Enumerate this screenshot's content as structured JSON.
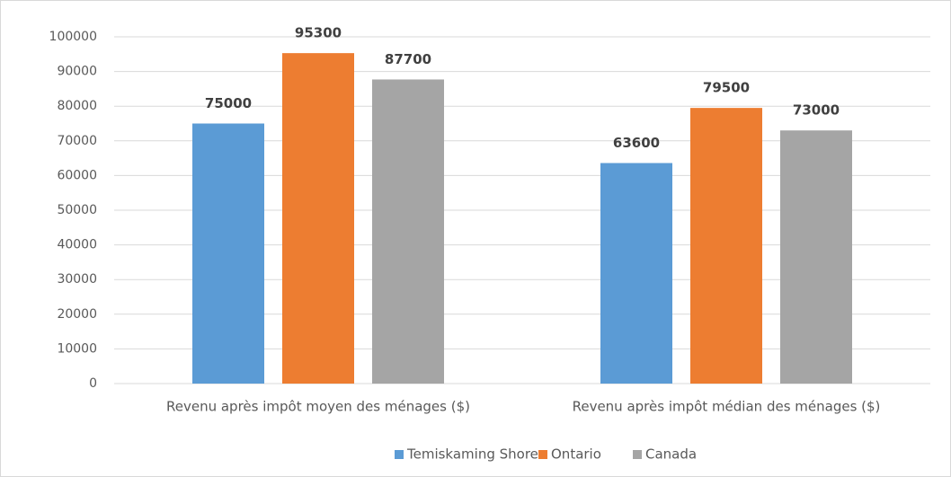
{
  "chart_data": {
    "type": "bar",
    "categories": [
      "Revenu après impôt moyen des ménages ($)",
      "Revenu après impôt médian des ménages ($)"
    ],
    "series": [
      {
        "name": "Temiskaming Shores",
        "color": "#5b9bd5",
        "values": [
          75000,
          63600
        ]
      },
      {
        "name": "Ontario",
        "color": "#ed7d31",
        "values": [
          95300,
          79500
        ]
      },
      {
        "name": "Canada",
        "color": "#a5a5a5",
        "values": [
          87700,
          73000
        ]
      }
    ],
    "ylim": [
      0,
      100000
    ],
    "yticks": [
      0,
      10000,
      20000,
      30000,
      40000,
      50000,
      60000,
      70000,
      80000,
      90000,
      100000
    ],
    "grid": true,
    "legend": "bottom"
  }
}
